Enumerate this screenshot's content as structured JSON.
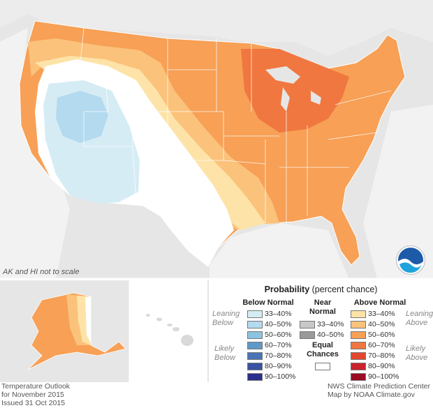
{
  "map": {
    "scale_note": "AK and HI not to scale",
    "footer_left": [
      "Temperature Outlook",
      "for November 2015",
      "Issued 31 Oct 2015"
    ],
    "footer_right": [
      "NWS Climate Prediction Center",
      "Map by NOAA Climate.gov"
    ],
    "logo_text": "NOAA"
  },
  "legend": {
    "title_bold": "Probability",
    "title_rest": " (percent chance)",
    "below_head": "Below Normal",
    "near_head": [
      "Near",
      "Normal"
    ],
    "above_head": "Above Normal",
    "leaning_below": [
      "Leaning",
      "Below"
    ],
    "likely_below": [
      "Likely",
      "Below"
    ],
    "leaning_above": [
      "Leaning",
      "Above"
    ],
    "likely_above": [
      "Likely",
      "Above"
    ],
    "equal_chances": [
      "Equal",
      "Chances"
    ],
    "below": [
      {
        "label": "33–40%",
        "color": "#d6ecf5"
      },
      {
        "label": "40–50%",
        "color": "#b3daee"
      },
      {
        "label": "50–60%",
        "color": "#8dc3e0"
      },
      {
        "label": "60–70%",
        "color": "#5f99c9"
      },
      {
        "label": "70–80%",
        "color": "#4a74b5"
      },
      {
        "label": "80–90%",
        "color": "#3a52a2"
      },
      {
        "label": "90–100%",
        "color": "#2b2f8c"
      }
    ],
    "near": [
      {
        "label": "33–40%",
        "color": "#c8c8c8"
      },
      {
        "label": "40–50%",
        "color": "#9a9a9a"
      }
    ],
    "above": [
      {
        "label": "33–40%",
        "color": "#fde3a8"
      },
      {
        "label": "40–50%",
        "color": "#fbc27b"
      },
      {
        "label": "50–60%",
        "color": "#f7a056"
      },
      {
        "label": "60–70%",
        "color": "#f07740"
      },
      {
        "label": "70–80%",
        "color": "#e2472d"
      },
      {
        "label": "80–90%",
        "color": "#c9242b"
      },
      {
        "label": "90–100%",
        "color": "#9b0b24"
      }
    ]
  }
}
